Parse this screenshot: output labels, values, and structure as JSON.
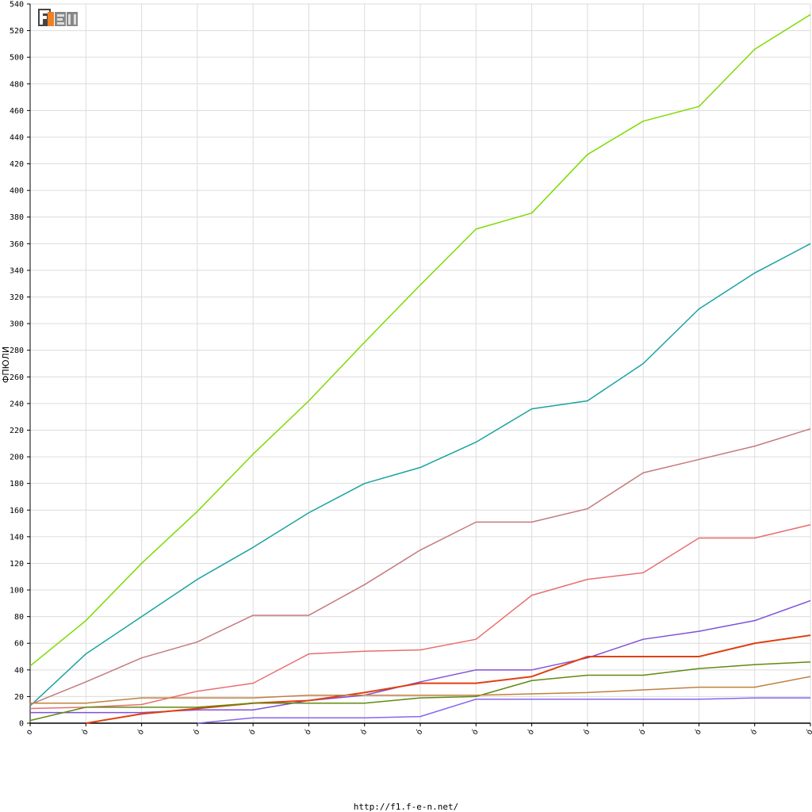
{
  "logo": {
    "text": "F1EN"
  },
  "footer": {
    "url": "http://f1.f-e-n.net/"
  },
  "chart_data": {
    "type": "line",
    "title": "",
    "ylabel": "ФПЮЛИ",
    "xlabel": "",
    "ylim": [
      0,
      540
    ],
    "y_ticks": [
      0,
      20,
      40,
      60,
      80,
      100,
      120,
      140,
      160,
      180,
      200,
      220,
      240,
      260,
      280,
      300,
      320,
      340,
      360,
      380,
      400,
      420,
      440,
      460,
      480,
      500,
      520,
      540
    ],
    "x_tick_labels": [
      "o",
      "о́",
      "о́",
      "о́",
      "о́",
      "о́",
      "о́",
      "о́",
      "о́",
      "о́",
      "о́",
      "о́",
      "о́",
      "о́",
      "о́"
    ],
    "x": [
      0,
      1,
      2,
      3,
      4,
      5,
      6,
      7,
      8,
      9,
      10,
      11,
      12,
      13,
      14
    ],
    "grid": true,
    "colors": {
      "grid": "#dcdcdc",
      "axis": "#000000"
    },
    "series": [
      {
        "color": "#7cdb00",
        "width": 1.5,
        "values": [
          43,
          77,
          120,
          159,
          202,
          242,
          286,
          329,
          371,
          383,
          427,
          452,
          463,
          506,
          532
        ]
      },
      {
        "color": "#1aa3a0",
        "width": 1.5,
        "values": [
          13,
          52,
          80,
          108,
          132,
          158,
          180,
          192,
          211,
          236,
          242,
          270,
          311,
          338,
          360
        ]
      },
      {
        "color": "#c47a7c",
        "width": 1.5,
        "values": [
          14,
          31,
          49,
          61,
          81,
          81,
          104,
          130,
          151,
          151,
          161,
          188,
          198,
          208,
          221
        ]
      },
      {
        "color": "#e86f6f",
        "width": 1.5,
        "values": [
          11,
          12,
          14,
          24,
          30,
          52,
          54,
          55,
          63,
          96,
          108,
          113,
          139,
          139,
          149
        ]
      },
      {
        "color": "#8050d8",
        "width": 1.5,
        "values": [
          8,
          8,
          8,
          10,
          10,
          17,
          21,
          31,
          40,
          40,
          49,
          63,
          69,
          77,
          92
        ]
      },
      {
        "color": "#e04010",
        "width": 2,
        "values": [
          null,
          0,
          7,
          11,
          15,
          17,
          23,
          30,
          30,
          35,
          50,
          50,
          50,
          60,
          66
        ]
      },
      {
        "color": "#608a10",
        "width": 1.5,
        "values": [
          2,
          12,
          12,
          12,
          15,
          15,
          15,
          19,
          20,
          32,
          36,
          36,
          41,
          44,
          46
        ]
      },
      {
        "color": "#c08040",
        "width": 1.5,
        "values": [
          15,
          15,
          19,
          19,
          19,
          21,
          21,
          21,
          21,
          22,
          23,
          25,
          27,
          27,
          35
        ]
      },
      {
        "color": "#8866ee",
        "width": 1.5,
        "values": [
          null,
          null,
          null,
          0,
          4,
          4,
          4,
          5,
          18,
          18,
          18,
          18,
          18,
          19,
          19
        ]
      }
    ]
  }
}
